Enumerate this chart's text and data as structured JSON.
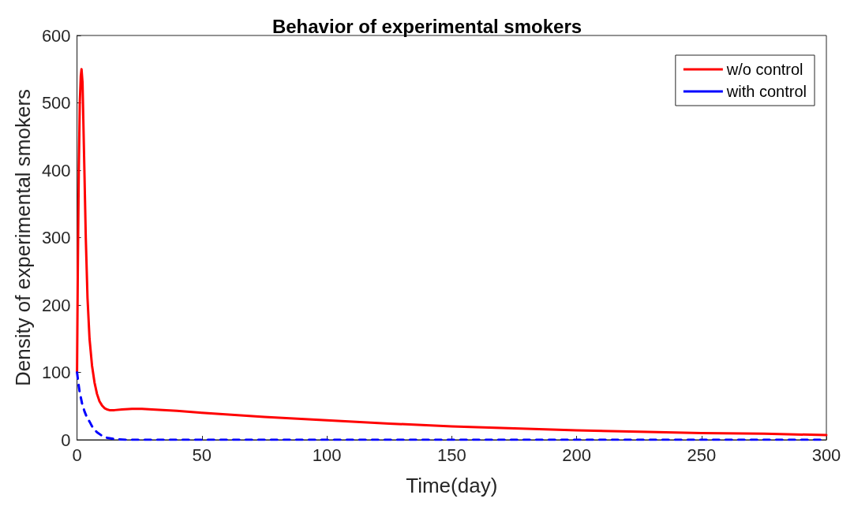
{
  "chart_data": {
    "type": "line",
    "title": "Behavior of experimental smokers",
    "xlabel": "Time(day)",
    "ylabel": "Density of experimental smokers",
    "xlim": [
      0,
      300
    ],
    "xticks": [
      0,
      50,
      100,
      150,
      200,
      250,
      300
    ],
    "ylim": [
      0,
      600
    ],
    "yticks": [
      0,
      100,
      200,
      300,
      400,
      500,
      600
    ],
    "grid": false,
    "legend": "top right",
    "marker": "none",
    "series": [
      {
        "name": "w/o control",
        "color": "#ff0000",
        "line_style": "solid",
        "x": [
          0,
          0.3,
          0.7,
          1.1,
          1.5,
          1.8,
          2.2,
          2.6,
          3,
          3.5,
          4.2,
          5,
          6,
          7,
          8,
          9,
          10,
          11,
          12,
          13,
          15,
          18,
          22,
          26,
          30,
          40,
          50,
          75,
          100,
          125,
          150,
          175,
          200,
          225,
          250,
          275,
          300
        ],
        "values": [
          100,
          250,
          400,
          500,
          540,
          550,
          530,
          460,
          390,
          300,
          210,
          150,
          110,
          85,
          68,
          57,
          51,
          47,
          45,
          44,
          44,
          45,
          46,
          46,
          45,
          43,
          40,
          34,
          29,
          24,
          20,
          17,
          14,
          12,
          10,
          9,
          7
        ]
      },
      {
        "name": "with control",
        "color": "#0000ff",
        "line_style": "dashed",
        "x": [
          0,
          0.5,
          1,
          2,
          3,
          4,
          5,
          6,
          7,
          8,
          10,
          12,
          15,
          20,
          30,
          50,
          100,
          150,
          200,
          250,
          300
        ],
        "values": [
          100,
          85,
          72,
          54,
          42,
          33,
          27,
          20,
          15,
          11,
          6,
          3,
          1,
          0,
          0,
          0,
          0,
          0,
          0,
          0,
          0
        ]
      }
    ]
  }
}
